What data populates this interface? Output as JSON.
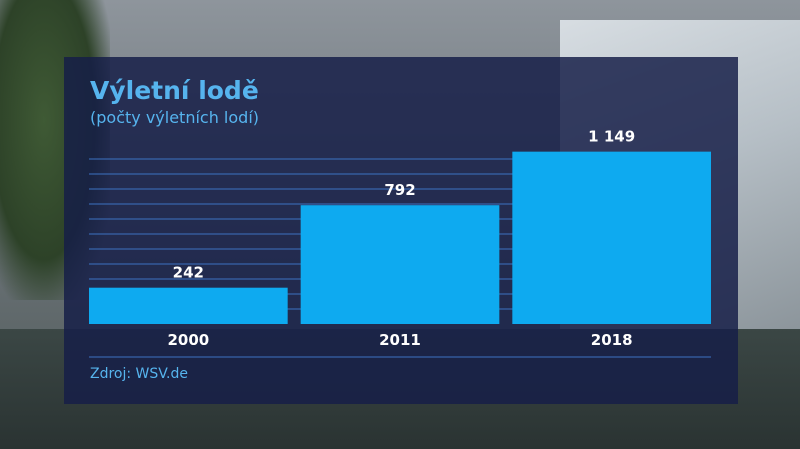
{
  "chart_data": {
    "type": "bar",
    "title": "Výletní lodě",
    "subtitle": "(počty výletních lodí)",
    "categories": [
      "2000",
      "2011",
      "2018"
    ],
    "values": [
      242,
      792,
      1149
    ],
    "value_labels": [
      "242",
      "792",
      "1 149"
    ],
    "xlabel": "",
    "ylabel": "",
    "ylim": [
      0,
      1200
    ],
    "grid": true,
    "gridline_step": 100,
    "source": "Zdroj: WSV.de"
  },
  "colors": {
    "bar": "#0eaaf0",
    "gridline": "#3c72c2",
    "text_accent": "#56b4ee"
  }
}
